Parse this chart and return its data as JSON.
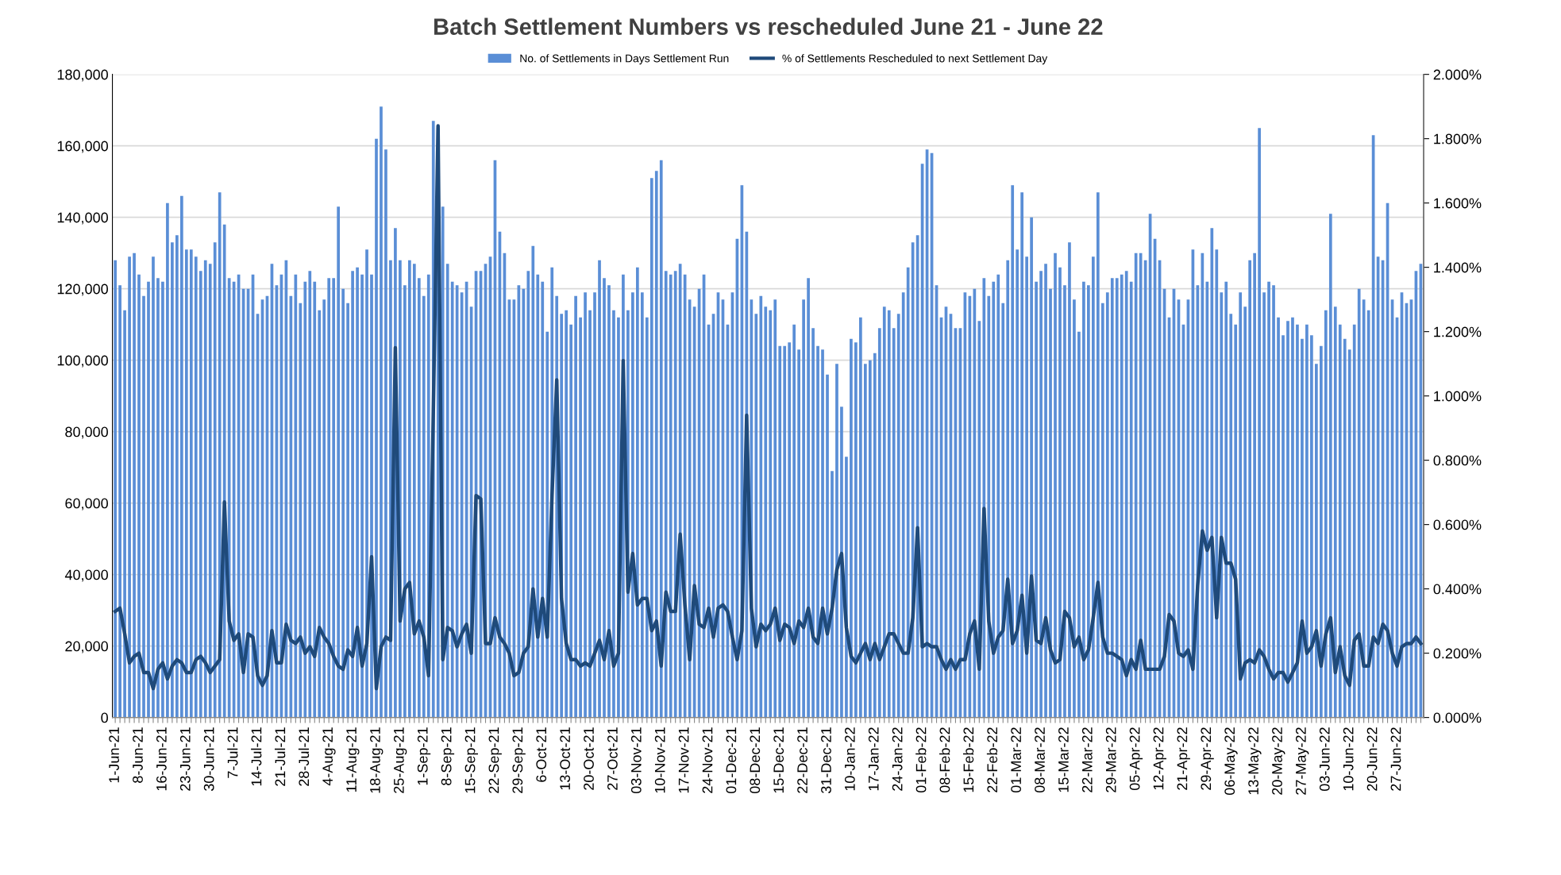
{
  "chart_data": {
    "type": "bar",
    "title": "Batch Settlement Numbers vs rescheduled June 21 - June 22",
    "categories": [
      "1-Jun-21",
      null,
      null,
      null,
      null,
      "8-Jun-21",
      null,
      null,
      null,
      null,
      "16-Jun-21",
      null,
      null,
      null,
      null,
      "23-Jun-21",
      null,
      null,
      null,
      null,
      "30-Jun-21",
      null,
      null,
      null,
      null,
      "7-Jul-21",
      null,
      null,
      null,
      null,
      "14-Jul-21",
      null,
      null,
      null,
      null,
      "21-Jul-21",
      null,
      null,
      null,
      null,
      "28-Jul-21",
      null,
      null,
      null,
      null,
      "4-Aug-21",
      null,
      null,
      null,
      null,
      "11-Aug-21",
      null,
      null,
      null,
      null,
      "18-Aug-21",
      null,
      null,
      null,
      null,
      "25-Aug-21",
      null,
      null,
      null,
      null,
      "1-Sep-21",
      null,
      null,
      null,
      null,
      "8-Sep-21",
      null,
      null,
      null,
      null,
      "15-Sep-21",
      null,
      null,
      null,
      null,
      "22-Sep-21",
      null,
      null,
      null,
      null,
      "29-Sep-21",
      null,
      null,
      null,
      null,
      "6-Oct-21",
      null,
      null,
      null,
      null,
      "13-Oct-21",
      null,
      null,
      null,
      null,
      "20-Oct-21",
      null,
      null,
      null,
      null,
      "27-Oct-21",
      null,
      null,
      null,
      null,
      "03-Nov-21",
      null,
      null,
      null,
      null,
      "10-Nov-21",
      null,
      null,
      null,
      null,
      "17-Nov-21",
      null,
      null,
      null,
      null,
      "24-Nov-21",
      null,
      null,
      null,
      null,
      "01-Dec-21",
      null,
      null,
      null,
      null,
      "08-Dec-21",
      null,
      null,
      null,
      null,
      "15-Dec-21",
      null,
      null,
      null,
      null,
      "22-Dec-21",
      null,
      null,
      null,
      null,
      "31-Dec-21",
      null,
      null,
      null,
      null,
      "10-Jan-22",
      null,
      null,
      null,
      null,
      "17-Jan-22",
      null,
      null,
      null,
      null,
      "24-Jan-22",
      null,
      null,
      null,
      null,
      "01-Feb-22",
      null,
      null,
      null,
      null,
      "08-Feb-22",
      null,
      null,
      null,
      null,
      "15-Feb-22",
      null,
      null,
      null,
      null,
      "22-Feb-22",
      null,
      null,
      null,
      null,
      "01-Mar-22",
      null,
      null,
      null,
      null,
      "08-Mar-22",
      null,
      null,
      null,
      null,
      "15-Mar-22",
      null,
      null,
      null,
      null,
      "22-Mar-22",
      null,
      null,
      null,
      null,
      "29-Mar-22",
      null,
      null,
      null,
      null,
      "05-Apr-22",
      null,
      null,
      null,
      null,
      "12-Apr-22",
      null,
      null,
      null,
      null,
      "21-Apr-22",
      null,
      null,
      null,
      null,
      "29-Apr-22",
      null,
      null,
      null,
      null,
      "06-May-22",
      null,
      null,
      null,
      null,
      "13-May-22",
      null,
      null,
      null,
      null,
      "20-May-22",
      null,
      null,
      null,
      null,
      "27-May-22",
      null,
      null,
      null,
      null,
      "03-Jun-22",
      null,
      null,
      null,
      null,
      "10-Jun-22",
      null,
      null,
      null,
      null,
      "20-Jun-22",
      null,
      null,
      null,
      null,
      "27-Jun-22",
      null,
      null,
      null,
      null,
      null
    ],
    "series": [
      {
        "name": "No. of Settlements in Days Settlement Run",
        "color": "#5a8ed6",
        "values": [
          128000,
          121000,
          114000,
          129000,
          130000,
          124000,
          118000,
          122000,
          129000,
          123000,
          122000,
          144000,
          133000,
          135000,
          146000,
          131000,
          131000,
          129000,
          125000,
          128000,
          127000,
          133000,
          147000,
          138000,
          123000,
          122000,
          124000,
          120000,
          120000,
          124000,
          113000,
          117000,
          118000,
          127000,
          121000,
          124000,
          128000,
          118000,
          124000,
          116000,
          122000,
          125000,
          122000,
          114000,
          117000,
          123000,
          123000,
          143000,
          120000,
          116000,
          125000,
          126000,
          124000,
          131000,
          124000,
          162000,
          171000,
          159000,
          128000,
          137000,
          128000,
          121000,
          128000,
          127000,
          123000,
          118000,
          124000,
          167000,
          165000,
          143000,
          127000,
          122000,
          121000,
          119000,
          122000,
          115000,
          125000,
          125000,
          127000,
          129000,
          156000,
          136000,
          130000,
          117000,
          117000,
          121000,
          120000,
          125000,
          132000,
          124000,
          122000,
          108000,
          126000,
          118000,
          113000,
          114000,
          110000,
          118000,
          112000,
          119000,
          114000,
          119000,
          128000,
          123000,
          121000,
          114000,
          112000,
          124000,
          114000,
          119000,
          126000,
          119000,
          112000,
          151000,
          153000,
          156000,
          125000,
          124000,
          125000,
          127000,
          124000,
          117000,
          115000,
          120000,
          124000,
          110000,
          113000,
          119000,
          117000,
          110000,
          119000,
          134000,
          149000,
          136000,
          117000,
          113000,
          118000,
          115000,
          114000,
          117000,
          104000,
          104000,
          105000,
          110000,
          103000,
          117000,
          123000,
          109000,
          104000,
          103000,
          96000,
          69000,
          99000,
          87000,
          73000,
          106000,
          105000,
          112000,
          99000,
          100000,
          102000,
          109000,
          115000,
          114000,
          109000,
          113000,
          119000,
          126000,
          133000,
          135000,
          155000,
          159000,
          158000,
          121000,
          112000,
          115000,
          113000,
          109000,
          109000,
          119000,
          118000,
          120000,
          111000,
          123000,
          118000,
          122000,
          124000,
          116000,
          128000,
          149000,
          131000,
          147000,
          129000,
          140000,
          122000,
          125000,
          127000,
          120000,
          130000,
          126000,
          121000,
          133000,
          117000,
          108000,
          122000,
          121000,
          129000,
          147000,
          116000,
          119000,
          123000,
          123000,
          124000,
          125000,
          122000,
          130000,
          130000,
          128000,
          141000,
          134000,
          128000,
          120000,
          112000,
          120000,
          117000,
          110000,
          117000,
          131000,
          121000,
          130000,
          122000,
          137000,
          131000,
          119000,
          122000,
          113000,
          110000,
          119000,
          115000,
          128000,
          130000,
          165000,
          119000,
          122000,
          121000,
          112000,
          107000,
          111000,
          112000,
          110000,
          106000,
          110000,
          107000,
          99000,
          104000,
          114000,
          141000,
          115000,
          110000,
          106000,
          103000,
          110000,
          120000,
          117000,
          114000,
          163000,
          129000,
          128000,
          144000,
          117000,
          112000,
          119000,
          116000,
          117000,
          125000,
          127000
        ]
      },
      {
        "name": "% of Settlements Rescheduled to next Settlement Day",
        "type": "line",
        "axis": "y2",
        "color": "#1f4a7a",
        "values": [
          0.33,
          0.34,
          0.26,
          0.17,
          0.19,
          0.2,
          0.14,
          0.14,
          0.09,
          0.15,
          0.17,
          0.12,
          0.16,
          0.18,
          0.17,
          0.14,
          0.14,
          0.18,
          0.19,
          0.17,
          0.14,
          0.16,
          0.18,
          0.67,
          0.3,
          0.24,
          0.26,
          0.14,
          0.26,
          0.25,
          0.13,
          0.1,
          0.13,
          0.27,
          0.17,
          0.17,
          0.29,
          0.24,
          0.23,
          0.25,
          0.2,
          0.22,
          0.19,
          0.28,
          0.25,
          0.23,
          0.19,
          0.16,
          0.15,
          0.21,
          0.19,
          0.28,
          0.16,
          0.23,
          0.5,
          0.09,
          0.22,
          0.25,
          0.24,
          1.15,
          0.3,
          0.4,
          0.42,
          0.26,
          0.3,
          0.25,
          0.13,
          0.95,
          1.84,
          0.18,
          0.28,
          0.27,
          0.22,
          0.26,
          0.29,
          0.2,
          0.69,
          0.68,
          0.23,
          0.23,
          0.31,
          0.25,
          0.23,
          0.2,
          0.13,
          0.14,
          0.2,
          0.22,
          0.4,
          0.25,
          0.37,
          0.25,
          0.69,
          1.05,
          0.37,
          0.23,
          0.18,
          0.18,
          0.16,
          0.17,
          0.16,
          0.2,
          0.24,
          0.18,
          0.27,
          0.16,
          0.2,
          1.11,
          0.39,
          0.51,
          0.35,
          0.37,
          0.37,
          0.27,
          0.3,
          0.16,
          0.39,
          0.33,
          0.33,
          0.57,
          0.35,
          0.18,
          0.41,
          0.29,
          0.28,
          0.34,
          0.25,
          0.34,
          0.35,
          0.33,
          0.25,
          0.18,
          0.27,
          0.94,
          0.34,
          0.22,
          0.29,
          0.27,
          0.29,
          0.34,
          0.24,
          0.29,
          0.28,
          0.23,
          0.3,
          0.28,
          0.34,
          0.25,
          0.23,
          0.34,
          0.26,
          0.34,
          0.46,
          0.51,
          0.28,
          0.19,
          0.17,
          0.2,
          0.23,
          0.18,
          0.23,
          0.18,
          0.22,
          0.26,
          0.26,
          0.23,
          0.2,
          0.2,
          0.31,
          0.59,
          0.22,
          0.23,
          0.22,
          0.22,
          0.18,
          0.15,
          0.18,
          0.15,
          0.18,
          0.18,
          0.26,
          0.3,
          0.15,
          0.65,
          0.3,
          0.2,
          0.25,
          0.27,
          0.43,
          0.23,
          0.27,
          0.38,
          0.2,
          0.44,
          0.24,
          0.23,
          0.31,
          0.21,
          0.17,
          0.18,
          0.33,
          0.31,
          0.22,
          0.25,
          0.18,
          0.21,
          0.31,
          0.42,
          0.25,
          0.2,
          0.2,
          0.19,
          0.18,
          0.13,
          0.18,
          0.15,
          0.24,
          0.15,
          0.15,
          0.15,
          0.15,
          0.19,
          0.32,
          0.3,
          0.2,
          0.19,
          0.21,
          0.15,
          0.41,
          0.58,
          0.52,
          0.56,
          0.31,
          0.56,
          0.48,
          0.48,
          0.43,
          0.12,
          0.17,
          0.18,
          0.17,
          0.21,
          0.19,
          0.15,
          0.12,
          0.14,
          0.14,
          0.11,
          0.14,
          0.17,
          0.3,
          0.2,
          0.22,
          0.27,
          0.16,
          0.26,
          0.31,
          0.14,
          0.22,
          0.13,
          0.1,
          0.24,
          0.26,
          0.16,
          0.16,
          0.25,
          0.23,
          0.29,
          0.27,
          0.2,
          0.16,
          0.22,
          0.23,
          0.23,
          0.25,
          0.23
        ]
      }
    ],
    "ylim": [
      0,
      180000
    ],
    "yticks": [
      0,
      {
        "value": 20000,
        "label": "20,000"
      },
      {
        "value": 40000,
        "label": "40,000"
      },
      {
        "value": 60000,
        "label": "60,000"
      },
      {
        "value": 80000,
        "label": "80,000"
      },
      {
        "value": 100000,
        "label": "100,000"
      },
      {
        "value": 120000,
        "label": "120,000"
      },
      {
        "value": 140000,
        "label": "140,000"
      },
      {
        "value": 160000,
        "label": "160,000"
      },
      {
        "value": 180000,
        "label": "180,000"
      }
    ],
    "y2lim": [
      0,
      2
    ],
    "y2ticks": [
      {
        "value": 0,
        "label": "0.000%"
      },
      {
        "value": 0.2,
        "label": "0.200%"
      },
      {
        "value": 0.4,
        "label": "0.400%"
      },
      {
        "value": 0.6,
        "label": "0.600%"
      },
      {
        "value": 0.8,
        "label": "0.800%"
      },
      {
        "value": 1.0,
        "label": "1.000%"
      },
      {
        "value": 1.2,
        "label": "1.200%"
      },
      {
        "value": 1.4,
        "label": "1.400%"
      },
      {
        "value": 1.6,
        "label": "1.600%"
      },
      {
        "value": 1.8,
        "label": "1.800%"
      },
      {
        "value": 2.0,
        "label": "2.000%"
      }
    ],
    "grid": "y",
    "legend": "top",
    "line_style": "solid",
    "marker": "none"
  }
}
